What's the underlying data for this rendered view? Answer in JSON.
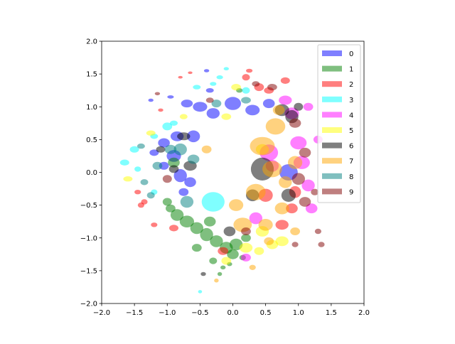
{
  "chart_data": {
    "type": "scatter",
    "title": "",
    "xlabel": "",
    "ylabel": "",
    "xlim": [
      -2.0,
      2.0
    ],
    "ylim": [
      -2.0,
      2.0
    ],
    "xticks": [
      "−2.0",
      "−1.5",
      "−1.0",
      "−0.5",
      "0.0",
      "0.5",
      "1.0",
      "1.5",
      "2.0"
    ],
    "yticks": [
      "−2.0",
      "−1.5",
      "−1.0",
      "−0.5",
      "0.0",
      "0.5",
      "1.0",
      "1.5",
      "2.0"
    ],
    "grid": false,
    "legend_position": "top-right",
    "marker": "ellipse",
    "alpha": 0.5,
    "series": [
      {
        "name": "0",
        "color": "#0000ff",
        "points": [
          [
            -0.95,
            1.15,
            0.1,
            0.05
          ],
          [
            -0.7,
            1.05,
            0.18,
            0.12
          ],
          [
            -0.5,
            1.0,
            0.22,
            0.15
          ],
          [
            -0.3,
            0.9,
            0.2,
            0.16
          ],
          [
            -0.85,
            0.55,
            0.2,
            0.15
          ],
          [
            -1.05,
            0.45,
            0.18,
            0.14
          ],
          [
            -1.2,
            0.3,
            0.14,
            0.1
          ],
          [
            -0.9,
            0.25,
            0.22,
            0.18
          ],
          [
            -0.8,
            -0.05,
            0.2,
            0.2
          ],
          [
            -0.75,
            -0.3,
            0.15,
            0.12
          ],
          [
            -0.35,
            1.25,
            0.12,
            0.07
          ],
          [
            0.0,
            1.05,
            0.25,
            0.2
          ],
          [
            0.3,
            0.95,
            0.22,
            0.16
          ],
          [
            0.85,
            0.0,
            0.28,
            0.25
          ],
          [
            -1.05,
            0.1,
            0.15,
            0.12
          ],
          [
            0.55,
            1.05,
            0.18,
            0.14
          ],
          [
            -0.4,
            1.55,
            0.08,
            0.05
          ],
          [
            -0.6,
            0.55,
            0.2,
            0.18
          ],
          [
            -0.65,
            -0.15,
            0.18,
            0.15
          ],
          [
            -1.25,
            1.1,
            0.08,
            0.05
          ]
        ]
      },
      {
        "name": "1",
        "color": "#008000",
        "points": [
          [
            -0.95,
            -0.55,
            0.15,
            0.12
          ],
          [
            -0.85,
            -0.65,
            0.2,
            0.18
          ],
          [
            -0.7,
            -0.75,
            0.22,
            0.18
          ],
          [
            -0.55,
            -0.85,
            0.2,
            0.18
          ],
          [
            -0.4,
            -0.95,
            0.2,
            0.2
          ],
          [
            -0.25,
            -1.05,
            0.2,
            0.18
          ],
          [
            -0.1,
            -1.15,
            0.2,
            0.18
          ],
          [
            0.0,
            -1.25,
            0.18,
            0.15
          ],
          [
            -0.3,
            -1.35,
            0.12,
            0.1
          ],
          [
            -0.15,
            -1.45,
            0.08,
            0.06
          ],
          [
            0.05,
            -1.1,
            0.2,
            0.18
          ],
          [
            0.2,
            -1.0,
            0.15,
            0.12
          ],
          [
            -1.0,
            -0.45,
            0.14,
            0.12
          ],
          [
            -0.9,
            0.15,
            0.18,
            0.15
          ],
          [
            -0.35,
            -0.75,
            0.18,
            0.15
          ],
          [
            -0.05,
            -1.4,
            0.08,
            0.06
          ],
          [
            0.1,
            1.25,
            0.1,
            0.07
          ],
          [
            -0.55,
            -1.15,
            0.15,
            0.12
          ],
          [
            -0.2,
            -1.55,
            0.07,
            0.06
          ],
          [
            0.15,
            -1.3,
            0.1,
            0.08
          ]
        ]
      },
      {
        "name": "2",
        "color": "#ff0000",
        "points": [
          [
            0.25,
            1.55,
            0.1,
            0.06
          ],
          [
            0.55,
            1.25,
            0.15,
            0.1
          ],
          [
            0.8,
            1.4,
            0.14,
            0.1
          ],
          [
            0.4,
            1.3,
            0.15,
            0.12
          ],
          [
            -1.45,
            -0.3,
            0.1,
            0.07
          ],
          [
            -1.35,
            -0.45,
            0.1,
            0.08
          ],
          [
            -1.2,
            -0.8,
            0.1,
            0.07
          ],
          [
            -0.9,
            -0.85,
            0.14,
            0.1
          ],
          [
            0.5,
            -0.35,
            0.22,
            0.2
          ],
          [
            0.95,
            -0.3,
            0.18,
            0.18
          ],
          [
            -1.1,
            0.95,
            0.08,
            0.05
          ],
          [
            -0.8,
            1.45,
            0.07,
            0.04
          ],
          [
            -0.15,
            -1.2,
            0.16,
            0.12
          ],
          [
            0.75,
            -0.8,
            0.2,
            0.15
          ],
          [
            -1.4,
            -0.5,
            0.1,
            0.08
          ],
          [
            0.2,
            1.45,
            0.12,
            0.1
          ],
          [
            -0.65,
            1.52,
            0.07,
            0.04
          ],
          [
            0.9,
            -0.55,
            0.18,
            0.15
          ]
        ]
      },
      {
        "name": "3",
        "color": "#00ffff",
        "points": [
          [
            -0.3,
            -0.45,
            0.35,
            0.3
          ],
          [
            -1.5,
            0.35,
            0.14,
            0.1
          ],
          [
            -1.65,
            0.15,
            0.14,
            0.09
          ],
          [
            -1.2,
            0.55,
            0.12,
            0.08
          ],
          [
            -0.9,
            0.75,
            0.12,
            0.08
          ],
          [
            -0.2,
            1.45,
            0.1,
            0.06
          ],
          [
            -0.1,
            1.58,
            0.08,
            0.05
          ],
          [
            0.2,
            1.25,
            0.12,
            0.1
          ],
          [
            -0.5,
            -1.82,
            0.06,
            0.05
          ],
          [
            -1.2,
            -0.3,
            0.1,
            0.08
          ],
          [
            -1.0,
            0.7,
            0.15,
            0.12
          ],
          [
            -0.55,
            1.3,
            0.12,
            0.07
          ],
          [
            -1.45,
            0.05,
            0.1,
            0.08
          ],
          [
            -0.3,
            1.35,
            0.1,
            0.06
          ]
        ]
      },
      {
        "name": "4",
        "color": "#ff00ff",
        "points": [
          [
            0.9,
            0.9,
            0.22,
            0.18
          ],
          [
            1.0,
            0.45,
            0.25,
            0.2
          ],
          [
            1.05,
            0.15,
            0.25,
            0.2
          ],
          [
            1.15,
            -0.2,
            0.2,
            0.18
          ],
          [
            1.2,
            -0.55,
            0.18,
            0.15
          ],
          [
            0.55,
            0.3,
            0.28,
            0.25
          ],
          [
            0.35,
            -0.7,
            0.2,
            0.18
          ],
          [
            0.8,
            1.1,
            0.2,
            0.14
          ],
          [
            1.3,
            0.5,
            0.14,
            0.12
          ],
          [
            1.15,
            1.0,
            0.15,
            0.12
          ],
          [
            0.6,
            0.1,
            0.2,
            0.18
          ],
          [
            0.2,
            -1.3,
            0.15,
            0.12
          ]
        ]
      },
      {
        "name": "5",
        "color": "#ffff00",
        "points": [
          [
            -1.25,
            0.6,
            0.14,
            0.08
          ],
          [
            -1.6,
            -0.1,
            0.14,
            0.08
          ],
          [
            0.45,
            -0.9,
            0.2,
            0.16
          ],
          [
            0.75,
            -1.05,
            0.2,
            0.15
          ],
          [
            0.6,
            -1.1,
            0.18,
            0.14
          ],
          [
            0.2,
            -1.15,
            0.2,
            0.15
          ],
          [
            0.05,
            1.3,
            0.15,
            0.1
          ],
          [
            0.45,
            0.35,
            0.2,
            0.16
          ],
          [
            -0.1,
            -1.35,
            0.15,
            0.12
          ],
          [
            0.4,
            -1.2,
            0.15,
            0.12
          ],
          [
            -0.75,
            0.85,
            0.12,
            0.08
          ],
          [
            -0.1,
            0.85,
            0.15,
            0.1
          ]
        ]
      },
      {
        "name": "6",
        "color": "#000000",
        "points": [
          [
            0.75,
            0.95,
            0.22,
            0.18
          ],
          [
            0.9,
            0.85,
            0.2,
            0.2
          ],
          [
            0.45,
            0.05,
            0.35,
            0.35
          ],
          [
            0.85,
            -0.35,
            0.22,
            0.2
          ],
          [
            -0.05,
            -0.9,
            0.18,
            0.15
          ],
          [
            -0.75,
            0.55,
            0.2,
            0.12
          ],
          [
            -0.65,
            0.1,
            0.2,
            0.15
          ],
          [
            -1.1,
            0.35,
            0.14,
            0.1
          ],
          [
            -0.45,
            -1.55,
            0.08,
            0.06
          ],
          [
            1.0,
            1.0,
            0.14,
            0.12
          ],
          [
            0.3,
            -0.35,
            0.2,
            0.18
          ],
          [
            -0.9,
            0.05,
            0.15,
            0.12
          ]
        ]
      },
      {
        "name": "7",
        "color": "#ffa500",
        "points": [
          [
            0.45,
            0.4,
            0.38,
            0.28
          ],
          [
            0.6,
            0.05,
            0.3,
            0.25
          ],
          [
            0.65,
            0.7,
            0.3,
            0.25
          ],
          [
            0.35,
            -0.3,
            0.3,
            0.25
          ],
          [
            0.15,
            -0.8,
            0.28,
            0.22
          ],
          [
            0.5,
            -0.8,
            0.22,
            0.18
          ],
          [
            0.75,
            -0.55,
            0.22,
            0.18
          ],
          [
            0.95,
            0.15,
            0.22,
            0.2
          ],
          [
            0.05,
            -0.5,
            0.22,
            0.18
          ],
          [
            -0.25,
            -1.65,
            0.07,
            0.06
          ],
          [
            0.3,
            -1.45,
            0.1,
            0.08
          ],
          [
            0.55,
            -1.05,
            0.15,
            0.12
          ],
          [
            0.8,
            -0.15,
            0.2,
            0.18
          ],
          [
            0.7,
            0.95,
            0.18,
            0.15
          ],
          [
            -0.4,
            0.35,
            0.15,
            0.12
          ],
          [
            0.95,
            -0.9,
            0.15,
            0.12
          ]
        ]
      },
      {
        "name": "8",
        "color": "#008080",
        "points": [
          [
            -1.4,
            0.4,
            0.12,
            0.08
          ],
          [
            -1.15,
            0.1,
            0.15,
            0.12
          ],
          [
            -0.95,
            0.35,
            0.18,
            0.14
          ],
          [
            -1.35,
            -0.15,
            0.12,
            0.09
          ],
          [
            -0.7,
            -0.45,
            0.2,
            0.18
          ],
          [
            0.2,
            1.1,
            0.15,
            0.1
          ],
          [
            -0.8,
            0.35,
            0.2,
            0.18
          ],
          [
            -1.25,
            -0.35,
            0.12,
            0.1
          ],
          [
            -0.6,
            0.2,
            0.18,
            0.14
          ],
          [
            -0.25,
            1.05,
            0.15,
            0.12
          ]
        ]
      },
      {
        "name": "9",
        "color": "#800000",
        "points": [
          [
            0.95,
            0.75,
            0.18,
            0.14
          ],
          [
            1.1,
            0.3,
            0.18,
            0.15
          ],
          [
            1.0,
            -0.1,
            0.2,
            0.18
          ],
          [
            1.1,
            -0.45,
            0.18,
            0.15
          ],
          [
            1.3,
            -0.9,
            0.1,
            0.08
          ],
          [
            0.95,
            -1.1,
            0.1,
            0.08
          ],
          [
            1.35,
            -1.1,
            0.1,
            0.08
          ],
          [
            0.6,
            1.3,
            0.15,
            0.1
          ],
          [
            -0.35,
            1.1,
            0.12,
            0.08
          ],
          [
            0.2,
            -0.9,
            0.15,
            0.12
          ],
          [
            -1.0,
            -0.1,
            0.14,
            0.12
          ],
          [
            1.25,
            -0.3,
            0.12,
            0.1
          ],
          [
            0.35,
            1.35,
            0.12,
            0.08
          ],
          [
            -1.15,
            1.2,
            0.08,
            0.05
          ]
        ]
      }
    ]
  }
}
